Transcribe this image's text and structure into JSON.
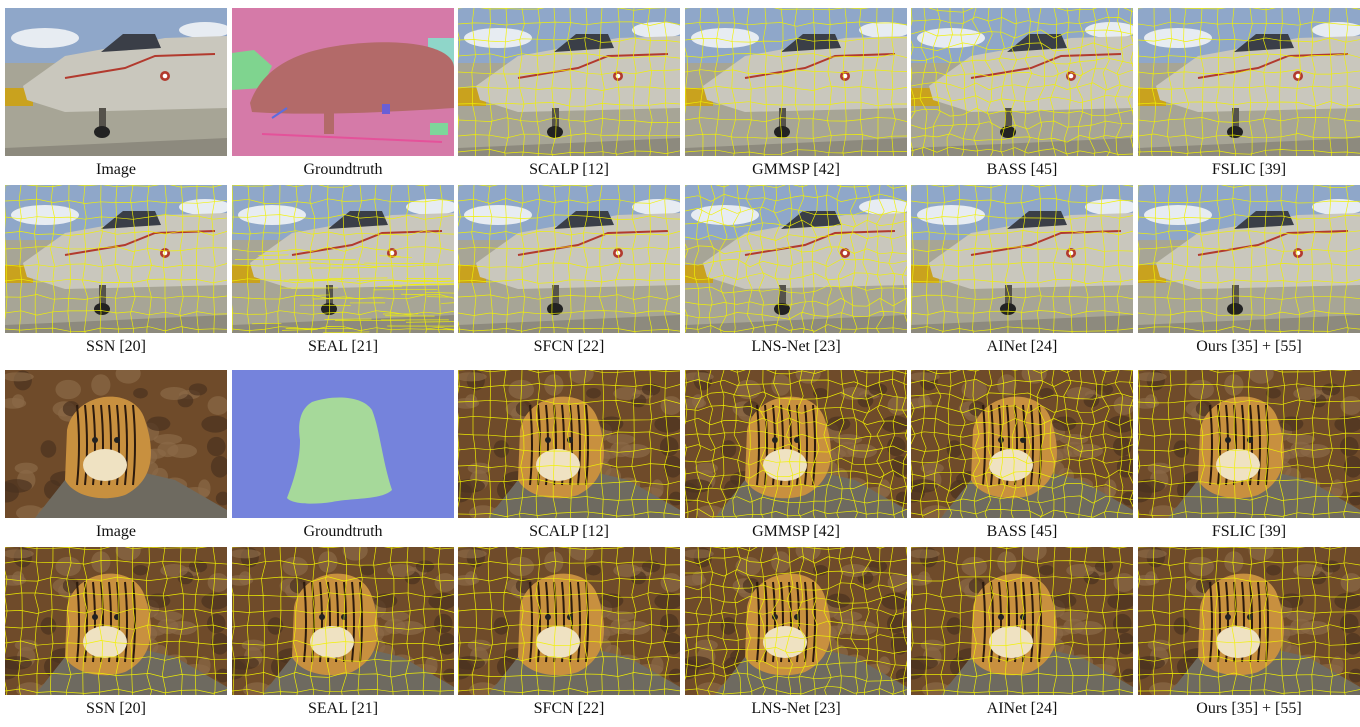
{
  "figure": {
    "rows": [
      {
        "subject": "aircraft",
        "panels": [
          {
            "caption": "Image",
            "kind": "image"
          },
          {
            "caption": "Groundtruth",
            "kind": "groundtruth"
          },
          {
            "caption": "SCALP [12]",
            "kind": "superpixels",
            "style": "regular"
          },
          {
            "caption": "GMMSP [42]",
            "kind": "superpixels",
            "style": "regular"
          },
          {
            "caption": "BASS [45]",
            "kind": "superpixels",
            "style": "irregular"
          },
          {
            "caption": "FSLIC [39]",
            "kind": "superpixels",
            "style": "regular"
          }
        ]
      },
      {
        "subject": "aircraft",
        "panels": [
          {
            "caption": "SSN [20]",
            "kind": "superpixels",
            "style": "regular"
          },
          {
            "caption": "SEAL [21]",
            "kind": "superpixels",
            "style": "streaks"
          },
          {
            "caption": "SFCN [22]",
            "kind": "superpixels",
            "style": "regular"
          },
          {
            "caption": "LNS-Net [23]",
            "kind": "superpixels",
            "style": "irregular"
          },
          {
            "caption": "AINet [24]",
            "kind": "superpixels",
            "style": "regular"
          },
          {
            "caption": "Ours [35] + [55]",
            "kind": "superpixels",
            "style": "regular"
          }
        ]
      },
      {
        "subject": "tiger",
        "panels": [
          {
            "caption": "Image",
            "kind": "image"
          },
          {
            "caption": "Groundtruth",
            "kind": "groundtruth"
          },
          {
            "caption": "SCALP [12]",
            "kind": "superpixels",
            "style": "regular"
          },
          {
            "caption": "GMMSP [42]",
            "kind": "superpixels",
            "style": "irregular"
          },
          {
            "caption": "BASS [45]",
            "kind": "superpixels",
            "style": "irregular"
          },
          {
            "caption": "FSLIC [39]",
            "kind": "superpixels",
            "style": "regular"
          }
        ]
      },
      {
        "subject": "tiger",
        "panels": [
          {
            "caption": "SSN [20]",
            "kind": "superpixels",
            "style": "regular"
          },
          {
            "caption": "SEAL [21]",
            "kind": "superpixels",
            "style": "regular"
          },
          {
            "caption": "SFCN [22]",
            "kind": "superpixels",
            "style": "regular"
          },
          {
            "caption": "LNS-Net [23]",
            "kind": "superpixels",
            "style": "irregular"
          },
          {
            "caption": "AINet [24]",
            "kind": "superpixels",
            "style": "regular"
          },
          {
            "caption": "Ours [35] + [55]",
            "kind": "superpixels",
            "style": "regular"
          }
        ]
      }
    ],
    "colors": {
      "boundary": "#f2f200",
      "sky": "#8fa7c9",
      "tarmac": "#a7a596",
      "jet_body": "#c9c7bd",
      "jet_dark": "#55524b",
      "gt_aircraft_bg": "#d57aa8",
      "gt_aircraft_obj": "#b36a69",
      "gt_tiger_bg": "#7583dc",
      "gt_tiger_obj": "#a6d99a",
      "foliage": "#6f4b2a",
      "tiger_fur": "#c8903f",
      "text": "#111111"
    }
  }
}
